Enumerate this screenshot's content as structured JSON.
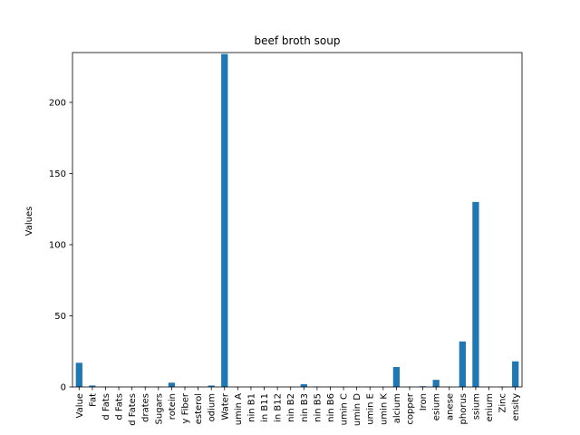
{
  "chart_data": {
    "type": "bar",
    "title": "beef broth soup",
    "xlabel": "",
    "ylabel": "Values",
    "ylim": [
      0,
      235
    ],
    "yticks": [
      0,
      50,
      100,
      150,
      200
    ],
    "bar_color": "#1f77b4",
    "grid": false,
    "categories": [
      "Value",
      "Fat",
      "d Fats",
      "d Fats",
      "d Fates",
      "drates",
      "Sugars",
      "rotein",
      "y Fiber",
      "esterol",
      "odium",
      "Water",
      "umin A",
      "nin B1",
      "in B11",
      "in B12",
      "nin B2",
      "nin B3",
      "nin B5",
      "nin B6",
      "umin C",
      "umin D",
      "umin E",
      "umin K",
      "alcium",
      "copper",
      "Iron",
      "esium",
      "anese",
      "phorus",
      "ssium",
      "enium",
      "Zinc",
      "ensity"
    ],
    "values": [
      17,
      1,
      0.3,
      0.2,
      0.2,
      0.3,
      0.3,
      3,
      0.2,
      0.2,
      1,
      234,
      0.2,
      0.2,
      0.2,
      0.2,
      0.2,
      2,
      0.3,
      0.2,
      0.2,
      0.2,
      0.2,
      0.2,
      14,
      0.2,
      0.5,
      5,
      0.2,
      32,
      130,
      0.2,
      0.3,
      18
    ]
  }
}
